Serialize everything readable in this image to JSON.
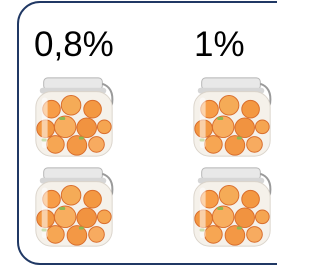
{
  "labels": [
    "0,8%",
    "1%"
  ]
}
